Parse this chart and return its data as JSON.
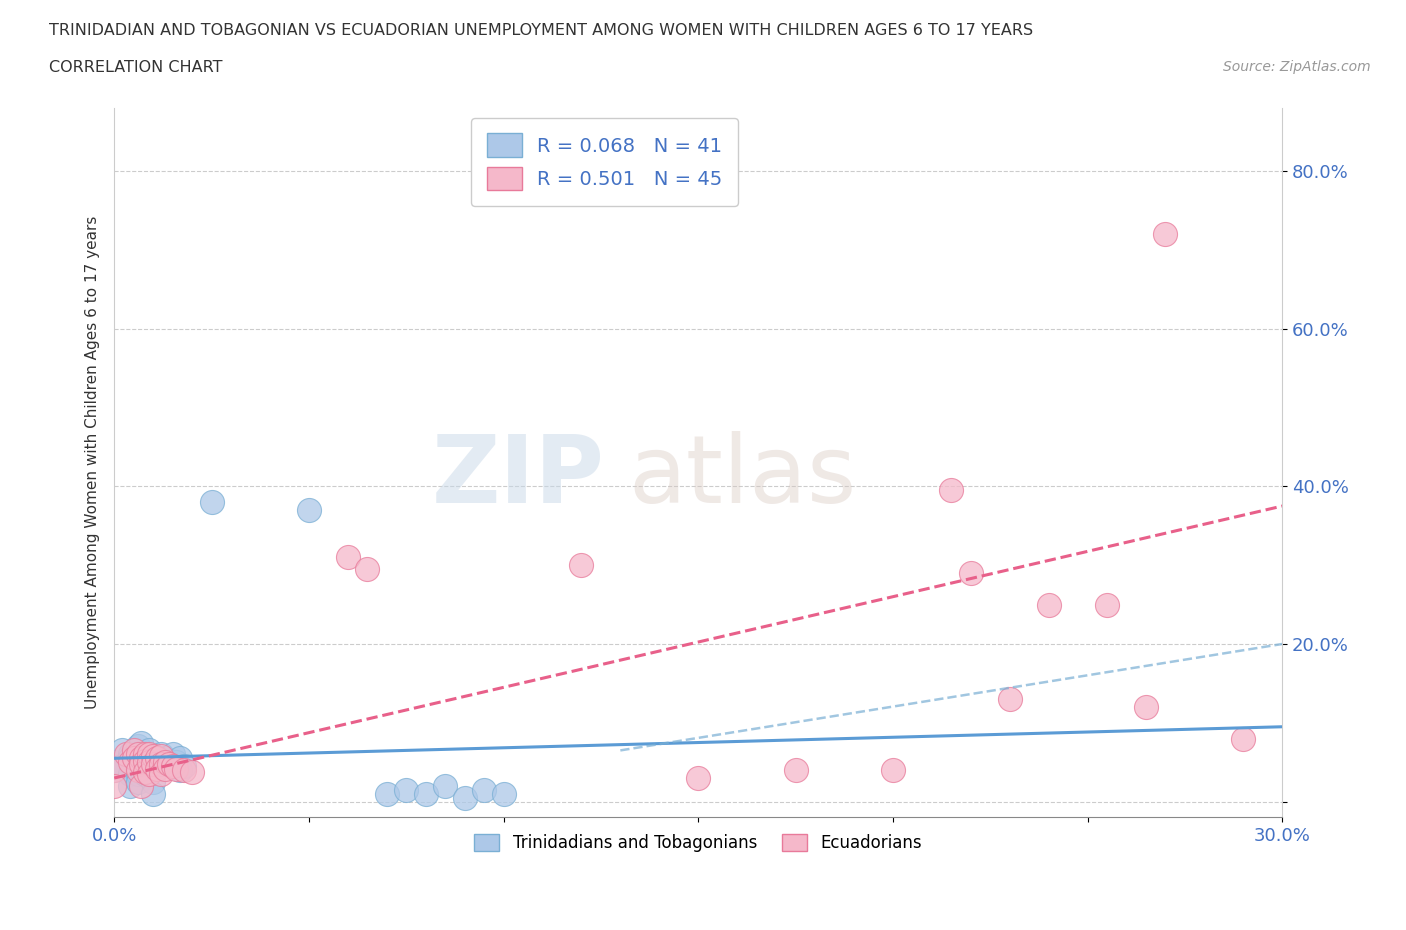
{
  "title_line1": "TRINIDADIAN AND TOBAGONIAN VS ECUADORIAN UNEMPLOYMENT AMONG WOMEN WITH CHILDREN AGES 6 TO 17 YEARS",
  "title_line2": "CORRELATION CHART",
  "source_text": "Source: ZipAtlas.com",
  "ylabel": "Unemployment Among Women with Children Ages 6 to 17 years",
  "xlim": [
    0.0,
    0.3
  ],
  "ylim": [
    -0.02,
    0.88
  ],
  "xticks": [
    0.0,
    0.05,
    0.1,
    0.15,
    0.2,
    0.25,
    0.3
  ],
  "xticklabels": [
    "0.0%",
    "",
    "",
    "",
    "",
    "",
    "30.0%"
  ],
  "yticks": [
    0.0,
    0.2,
    0.4,
    0.6,
    0.8
  ],
  "yticklabels": [
    "",
    "20.0%",
    "40.0%",
    "60.0%",
    "80.0%"
  ],
  "blue_color": "#adc8e8",
  "pink_color": "#f5b8ca",
  "blue_edge_color": "#7aafd4",
  "pink_edge_color": "#e87a9a",
  "blue_line_color": "#5b9bd5",
  "pink_line_color": "#e8608a",
  "R_blue": 0.068,
  "N_blue": 41,
  "R_pink": 0.501,
  "N_pink": 45,
  "legend_label_blue": "Trinidadians and Tobagonians",
  "legend_label_pink": "Ecuadorians",
  "blue_scatter": [
    [
      0.0,
      0.05
    ],
    [
      0.0,
      0.04
    ],
    [
      0.002,
      0.065
    ],
    [
      0.002,
      0.045
    ],
    [
      0.004,
      0.06
    ],
    [
      0.004,
      0.055
    ],
    [
      0.004,
      0.035
    ],
    [
      0.004,
      0.02
    ],
    [
      0.006,
      0.07
    ],
    [
      0.006,
      0.06
    ],
    [
      0.006,
      0.035
    ],
    [
      0.006,
      0.025
    ],
    [
      0.007,
      0.075
    ],
    [
      0.007,
      0.055
    ],
    [
      0.007,
      0.04
    ],
    [
      0.008,
      0.06
    ],
    [
      0.008,
      0.035
    ],
    [
      0.009,
      0.065
    ],
    [
      0.01,
      0.055
    ],
    [
      0.01,
      0.04
    ],
    [
      0.01,
      0.025
    ],
    [
      0.01,
      0.01
    ],
    [
      0.012,
      0.06
    ],
    [
      0.012,
      0.05
    ],
    [
      0.013,
      0.055
    ],
    [
      0.014,
      0.05
    ],
    [
      0.015,
      0.06
    ],
    [
      0.015,
      0.045
    ],
    [
      0.016,
      0.05
    ],
    [
      0.017,
      0.055
    ],
    [
      0.017,
      0.04
    ],
    [
      0.018,
      0.045
    ],
    [
      0.025,
      0.38
    ],
    [
      0.05,
      0.37
    ],
    [
      0.07,
      0.01
    ],
    [
      0.075,
      0.015
    ],
    [
      0.08,
      0.01
    ],
    [
      0.085,
      0.02
    ],
    [
      0.09,
      0.005
    ],
    [
      0.095,
      0.015
    ],
    [
      0.1,
      0.01
    ]
  ],
  "pink_scatter": [
    [
      0.0,
      0.04
    ],
    [
      0.0,
      0.02
    ],
    [
      0.003,
      0.06
    ],
    [
      0.004,
      0.05
    ],
    [
      0.005,
      0.065
    ],
    [
      0.005,
      0.055
    ],
    [
      0.006,
      0.06
    ],
    [
      0.006,
      0.04
    ],
    [
      0.007,
      0.055
    ],
    [
      0.007,
      0.048
    ],
    [
      0.007,
      0.02
    ],
    [
      0.008,
      0.06
    ],
    [
      0.008,
      0.052
    ],
    [
      0.008,
      0.038
    ],
    [
      0.009,
      0.06
    ],
    [
      0.009,
      0.05
    ],
    [
      0.009,
      0.035
    ],
    [
      0.01,
      0.058
    ],
    [
      0.01,
      0.048
    ],
    [
      0.011,
      0.055
    ],
    [
      0.011,
      0.042
    ],
    [
      0.012,
      0.058
    ],
    [
      0.012,
      0.048
    ],
    [
      0.012,
      0.035
    ],
    [
      0.013,
      0.05
    ],
    [
      0.013,
      0.042
    ],
    [
      0.014,
      0.048
    ],
    [
      0.015,
      0.045
    ],
    [
      0.016,
      0.042
    ],
    [
      0.018,
      0.04
    ],
    [
      0.02,
      0.038
    ],
    [
      0.06,
      0.31
    ],
    [
      0.065,
      0.295
    ],
    [
      0.12,
      0.3
    ],
    [
      0.15,
      0.03
    ],
    [
      0.175,
      0.04
    ],
    [
      0.2,
      0.04
    ],
    [
      0.215,
      0.395
    ],
    [
      0.22,
      0.29
    ],
    [
      0.23,
      0.13
    ],
    [
      0.24,
      0.25
    ],
    [
      0.255,
      0.25
    ],
    [
      0.265,
      0.12
    ],
    [
      0.27,
      0.72
    ],
    [
      0.29,
      0.08
    ]
  ],
  "blue_trend_x": [
    0.0,
    0.3
  ],
  "blue_trend_y": [
    0.055,
    0.095
  ],
  "pink_trend_x": [
    0.0,
    0.3
  ],
  "pink_trend_y": [
    0.03,
    0.375
  ]
}
